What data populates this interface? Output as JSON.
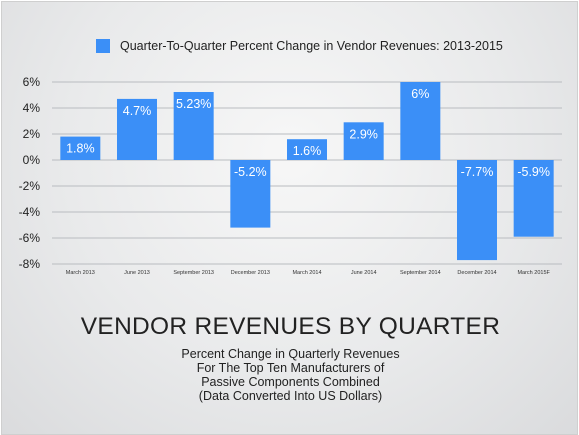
{
  "chart_data": {
    "type": "bar",
    "categories": [
      "March 2013",
      "June 2013",
      "September 2013",
      "December 2013",
      "March 2014",
      "June 2014",
      "September 2014",
      "December 2014",
      "March 2015F"
    ],
    "series": [
      {
        "name": "Quarter-To-Quarter Percent Change in Vendor Revenues: 2013-2015",
        "values": [
          1.8,
          4.7,
          5.23,
          -5.2,
          1.6,
          2.9,
          6,
          -7.7,
          -5.9
        ],
        "labels": [
          "1.8%",
          "4.7%",
          "5.23%",
          "-5.2%",
          "1.6%",
          "2.9%",
          "6%",
          "-7.7%",
          "-5.9%"
        ],
        "color": "#3b8ff7"
      }
    ],
    "ylim": [
      -8,
      6
    ],
    "yticks": [
      6,
      4,
      2,
      0,
      -2,
      -4,
      -6,
      -8
    ],
    "ytick_labels": [
      "6%",
      "4%",
      "2%",
      "0%",
      "-2%",
      "-4%",
      "-6%",
      "-8%"
    ],
    "grid": true,
    "legend": "top",
    "title": "VENDOR REVENUES BY QUARTER",
    "subtitle_lines": [
      "Percent Change in Quarterly Revenues",
      "For The Top Ten Manufacturers of",
      "Passive Components Combined",
      "(Data Converted Into US Dollars)"
    ]
  }
}
